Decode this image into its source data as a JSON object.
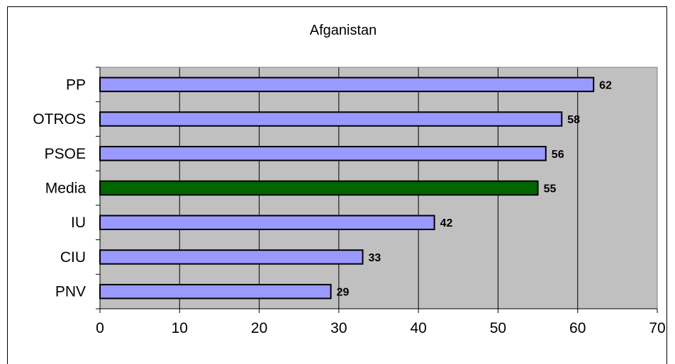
{
  "chart_data": {
    "type": "bar",
    "orientation": "horizontal",
    "title": "Afganistan",
    "xlabel": "",
    "ylabel": "",
    "categories": [
      "PP",
      "OTROS",
      "PSOE",
      "Media",
      "IU",
      "CIU",
      "PNV"
    ],
    "values": [
      62,
      58,
      56,
      55,
      42,
      33,
      29
    ],
    "bar_colors": [
      "#9999ff",
      "#9999ff",
      "#9999ff",
      "#006600",
      "#9999ff",
      "#9999ff",
      "#9999ff"
    ],
    "xlim": [
      0,
      70
    ],
    "xticks": [
      0,
      10,
      20,
      30,
      40,
      50,
      60,
      70
    ],
    "grid": true,
    "plot_background": "#c0c0c0",
    "data_labels": true,
    "legend": "none"
  }
}
